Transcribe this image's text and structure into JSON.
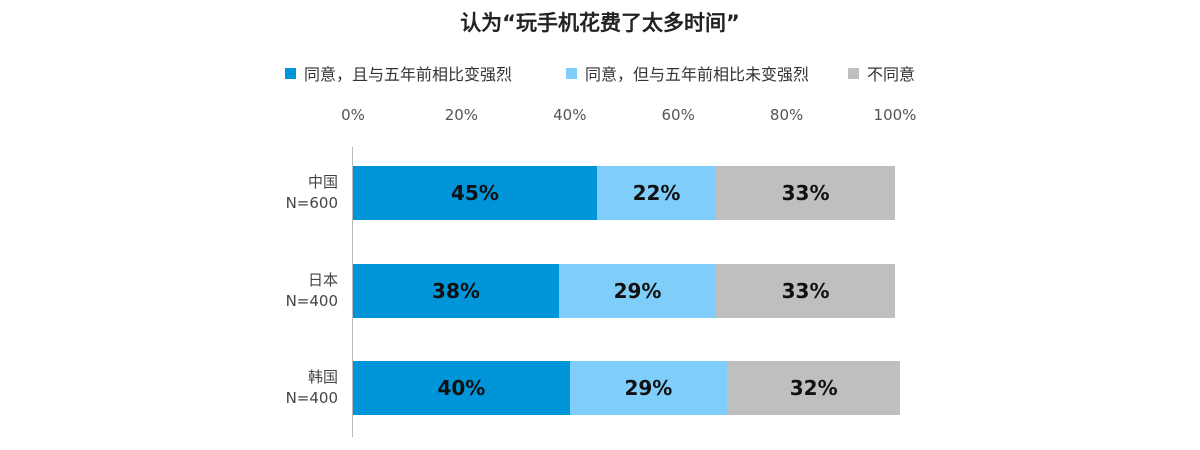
{
  "chart_data": {
    "type": "bar",
    "orientation": "horizontal",
    "stacked": true,
    "title": "认为“玩手机花费了太多时间”",
    "categories": [
      {
        "name": "中国",
        "n": "N=600"
      },
      {
        "name": "日本",
        "n": "N=400"
      },
      {
        "name": "韩国",
        "n": "N=400"
      }
    ],
    "series": [
      {
        "name": "同意，且与五年前相比变强烈",
        "color": "#0095d9",
        "values": [
          45,
          38,
          40
        ]
      },
      {
        "name": "同意，但与五年前相比未变强烈",
        "color": "#7fcefa",
        "values": [
          22,
          29,
          29
        ]
      },
      {
        "name": "不同意",
        "color": "#bfbfbf",
        "values": [
          33,
          33,
          32
        ]
      }
    ],
    "xlim": [
      0,
      100
    ],
    "x_ticks": [
      "0%",
      "20%",
      "40%",
      "60%",
      "80%",
      "100%"
    ],
    "value_suffix": "%",
    "legend_position": "top",
    "grid": false
  }
}
